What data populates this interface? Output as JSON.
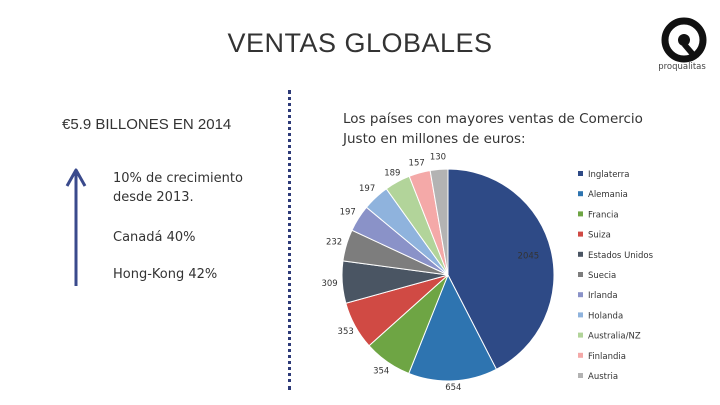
{
  "header": {
    "title": "VENTAS GLOBALES"
  },
  "logo": {
    "text": "proqualitas",
    "icon": "q-logo-icon"
  },
  "left_panel": {
    "headline": "€5.9 BILLONES EN 2014",
    "growth_line1": "10% de crecimiento",
    "growth_line2": "desde 2013.",
    "canada": "Canadá 40%",
    "hongkong": "Hong-Kong 42%",
    "arrow_icon": "up-arrow-icon",
    "arrow_color": "#3a4a8c"
  },
  "chart_heading": {
    "line1": "Los países con mayores ventas de Comercio",
    "line2": "Justo en millones de euros:"
  },
  "chart_data": {
    "type": "pie",
    "title": "",
    "legend_position": "right",
    "slices": [
      {
        "name": "Inglaterra",
        "value": 2045,
        "label": "2045",
        "color": "#2e4a86"
      },
      {
        "name": "Alemania",
        "value": 654,
        "label": "654",
        "color": "#2e74b0"
      },
      {
        "name": "Francia",
        "value": 354,
        "label": "354",
        "color": "#6ea544"
      },
      {
        "name": "Suiza",
        "value": 353,
        "label": "353",
        "color": "#d04a44"
      },
      {
        "name": "Estados Unidos",
        "value": 309,
        "label": "309",
        "color": "#4a5563"
      },
      {
        "name": "Suecia",
        "value": 232,
        "label": "232",
        "color": "#7d7d7d"
      },
      {
        "name": "Irlanda",
        "value": 197,
        "label": "197",
        "color": "#8a92c8"
      },
      {
        "name": "Holanda",
        "value": 197,
        "label": "197",
        "color": "#8fb3dd"
      },
      {
        "name": "Australia/NZ",
        "value": 189,
        "label": "189",
        "color": "#b2d49a"
      },
      {
        "name": "Finlandia",
        "value": 157,
        "label": "157",
        "color": "#f4a9a8"
      },
      {
        "name": "Austria",
        "value": 130,
        "label": "130",
        "color": "#b3b3b3"
      }
    ]
  }
}
